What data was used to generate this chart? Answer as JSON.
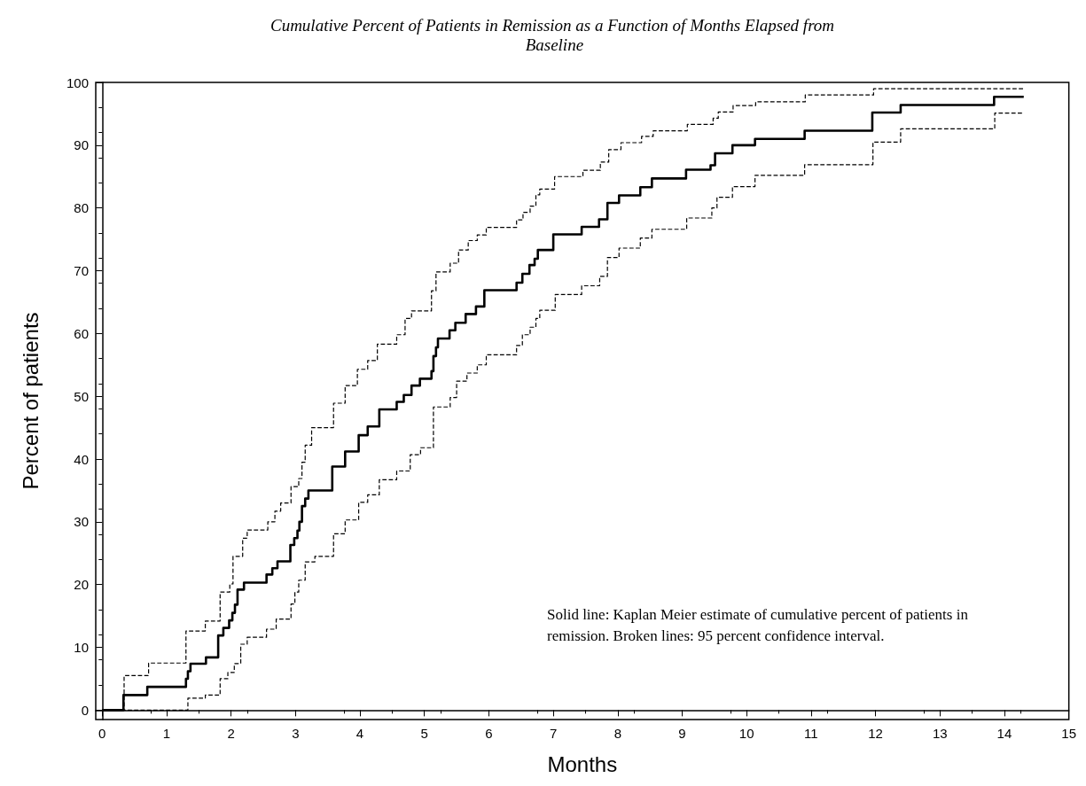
{
  "chart_data": {
    "type": "step",
    "title": "Cumulative Percent of Patients in Remission as a Function of Months Elapsed from Baseline",
    "xlabel": "Months",
    "ylabel": "Percent of patients",
    "xlim": [
      -0.1,
      15
    ],
    "xticks": [
      0,
      1,
      2,
      3,
      4,
      5,
      6,
      7,
      8,
      9,
      10,
      11,
      12,
      13,
      14,
      15
    ],
    "ylim": [
      -1.5,
      100
    ],
    "yticks": [
      0,
      10,
      20,
      30,
      40,
      50,
      60,
      70,
      80,
      90,
      100
    ],
    "marker": "none",
    "annotations": [
      "Solid line: Kaplan Meier estimate of cumulative percent of patients in remission. Broken lines: 95 percent confidence interval."
    ],
    "series": [
      {
        "color": "#000000",
        "line_style": "solid",
        "x": [
          0,
          0.33,
          0.7,
          1.3,
          1.33,
          1.37,
          1.61,
          1.8,
          1.88,
          1.97,
          2.02,
          2.06,
          2.1,
          2.2,
          2.55,
          2.64,
          2.72,
          2.92,
          2.98,
          3.03,
          3.06,
          3.1,
          3.15,
          3.2,
          3.57,
          3.77,
          3.98,
          4.12,
          4.3,
          4.57,
          4.68,
          4.8,
          4.93,
          5.11,
          5.14,
          5.18,
          5.21,
          5.39,
          5.48,
          5.64,
          5.8,
          5.93,
          6.43,
          6.52,
          6.63,
          6.71,
          6.76,
          7.0,
          7.44,
          7.71,
          7.84,
          8.02,
          8.35,
          8.53,
          9.06,
          9.44,
          9.51,
          9.78,
          10.13,
          10.9,
          11.95,
          12.39,
          13.84,
          14.3
        ],
        "values": [
          0,
          2.4,
          3.7,
          5.0,
          6.2,
          7.4,
          8.4,
          11.9,
          13.1,
          14.3,
          15.5,
          16.8,
          19.2,
          20.3,
          21.6,
          22.6,
          23.7,
          26.3,
          27.4,
          28.6,
          30.0,
          32.5,
          33.7,
          35.0,
          38.8,
          41.2,
          43.8,
          45.2,
          47.9,
          49.1,
          50.2,
          51.7,
          52.8,
          54.0,
          56.4,
          57.8,
          59.2,
          60.5,
          61.7,
          63.1,
          64.3,
          66.9,
          68.1,
          69.5,
          70.9,
          71.9,
          73.3,
          75.8,
          77.0,
          78.2,
          80.8,
          82.0,
          83.3,
          84.7,
          86.1,
          86.8,
          88.7,
          90.0,
          91.0,
          92.3,
          95.2,
          96.4,
          97.7,
          97.7
        ]
      },
      {
        "color": "#000000",
        "line_style": "dashed",
        "x": [
          0,
          0.34,
          0.72,
          1.3,
          1.6,
          1.83,
          1.98,
          2.03,
          2.18,
          2.25,
          2.57,
          2.68,
          2.77,
          2.93,
          3.05,
          3.1,
          3.15,
          3.25,
          3.59,
          3.77,
          3.96,
          4.12,
          4.27,
          4.57,
          4.7,
          4.8,
          5.11,
          5.18,
          5.4,
          5.53,
          5.68,
          5.82,
          5.96,
          6.43,
          6.53,
          6.64,
          6.73,
          6.79,
          7.02,
          7.46,
          7.73,
          7.86,
          8.05,
          8.37,
          8.55,
          9.08,
          9.48,
          9.56,
          9.79,
          10.14,
          10.91,
          11.97,
          14.3
        ],
        "values": [
          0,
          5.5,
          7.5,
          12.6,
          14.2,
          18.8,
          20.1,
          24.5,
          27.4,
          28.7,
          30.0,
          31.7,
          33.0,
          35.6,
          36.9,
          39.5,
          42.2,
          45.0,
          48.9,
          51.7,
          54.3,
          55.7,
          58.3,
          59.8,
          62.4,
          63.6,
          66.8,
          69.8,
          71.2,
          73.3,
          74.8,
          75.7,
          76.9,
          78.1,
          79.3,
          80.3,
          82.1,
          83.0,
          85.0,
          86.0,
          87.3,
          89.3,
          90.4,
          91.4,
          92.3,
          93.3,
          94.3,
          95.3,
          96.3,
          96.9,
          98.0,
          99.0,
          99.0
        ]
      },
      {
        "color": "#000000",
        "line_style": "dashed",
        "x": [
          0,
          1.33,
          1.6,
          1.83,
          1.95,
          2.05,
          2.15,
          2.25,
          2.55,
          2.7,
          2.93,
          2.99,
          3.05,
          3.15,
          3.3,
          3.59,
          3.77,
          3.98,
          4.12,
          4.3,
          4.57,
          4.78,
          4.94,
          5.14,
          5.4,
          5.5,
          5.66,
          5.82,
          5.96,
          6.43,
          6.52,
          6.64,
          6.73,
          6.79,
          7.03,
          7.44,
          7.72,
          7.84,
          8.02,
          8.35,
          8.53,
          9.07,
          9.46,
          9.54,
          9.78,
          10.13,
          10.9,
          11.96,
          12.39,
          13.85,
          14.3
        ],
        "values": [
          0,
          1.9,
          2.4,
          5.0,
          6.0,
          7.4,
          10.5,
          11.6,
          12.9,
          14.5,
          16.9,
          18.8,
          20.7,
          23.6,
          24.5,
          28.1,
          30.3,
          33.1,
          34.3,
          36.7,
          38.1,
          40.7,
          41.8,
          48.3,
          49.8,
          52.4,
          53.7,
          55.0,
          56.6,
          58.1,
          59.8,
          61.0,
          62.4,
          63.7,
          66.2,
          67.6,
          69.1,
          72.1,
          73.6,
          75.2,
          76.6,
          78.4,
          80.0,
          81.7,
          83.4,
          85.2,
          86.9,
          90.5,
          92.6,
          95.1,
          95.1
        ]
      }
    ]
  }
}
